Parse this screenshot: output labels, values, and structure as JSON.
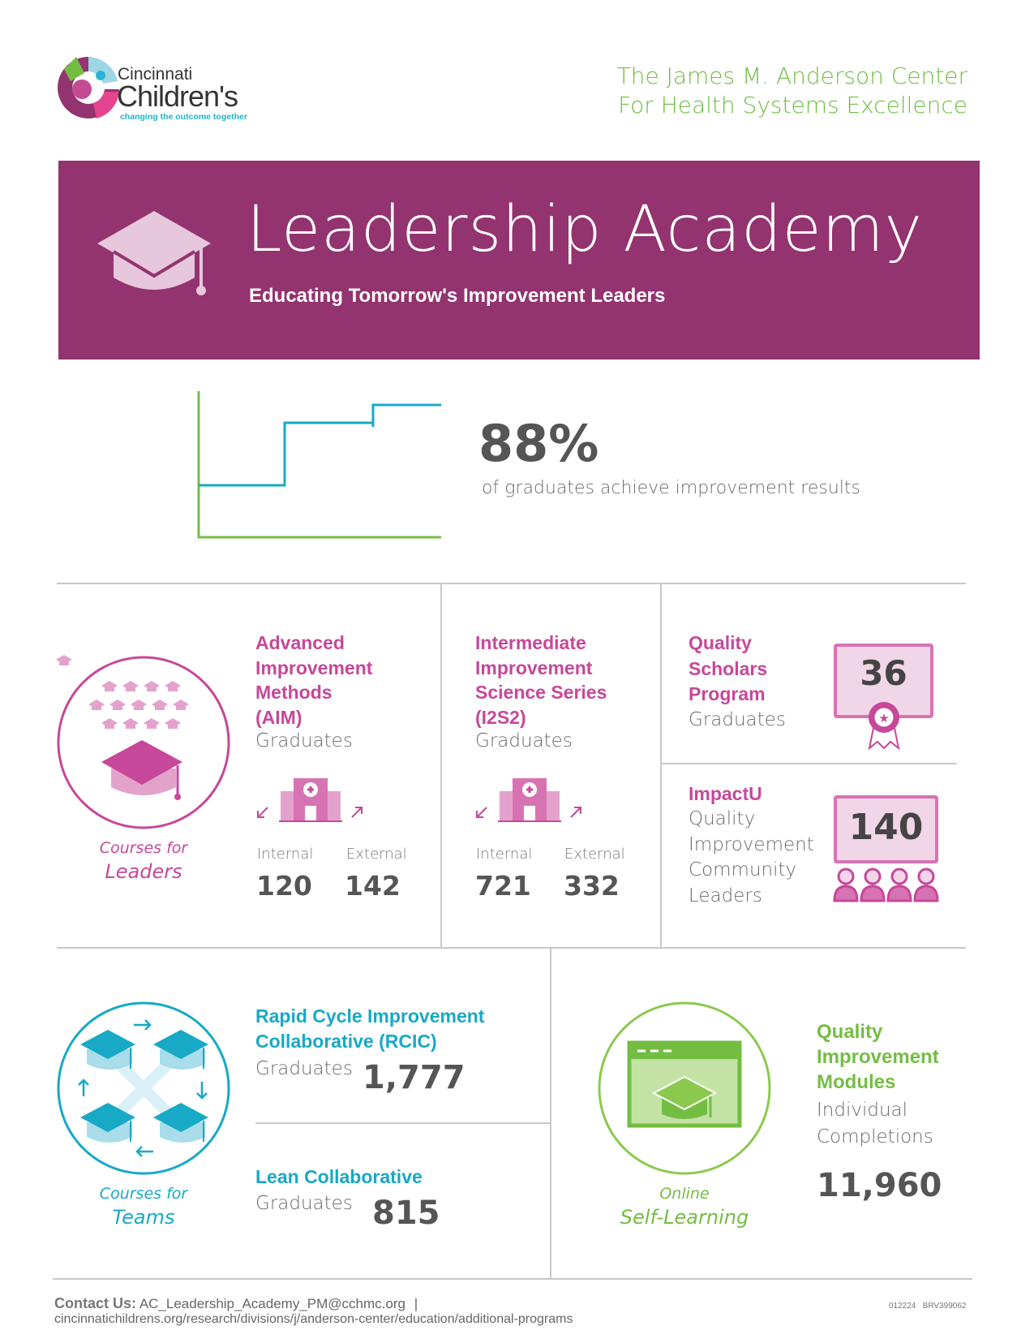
{
  "header": {
    "logo_line1": "Cincinnati",
    "logo_line2": "Children's",
    "logo_tagline": "changing the outcome together",
    "center_line1": "The James M. Anderson Center",
    "center_line2": "For Health Systems Excellence"
  },
  "banner": {
    "title": "Leadership Academy",
    "subtitle": "Educating Tomorrow's Improvement Leaders",
    "color": "#93336f"
  },
  "stat": {
    "value": "88%",
    "caption": "of graduates achieve improvement results"
  },
  "leaders": {
    "label1": "Courses for",
    "label2": "Leaders",
    "aim": {
      "title": [
        "Advanced",
        "Improvement",
        "Methods",
        "(AIM)"
      ],
      "sub": "Graduates",
      "internal_label": "Internal",
      "external_label": "External",
      "internal": "120",
      "external": "142"
    },
    "i2s2": {
      "title": [
        "Intermediate",
        "Improvement",
        "Science Series",
        "(I2S2)"
      ],
      "sub": "Graduates",
      "internal_label": "Internal",
      "external_label": "External",
      "internal": "721",
      "external": "332"
    },
    "qsp": {
      "title": [
        "Quality",
        "Scholars",
        "Program"
      ],
      "sub": "Graduates",
      "value": "36"
    },
    "impactu": {
      "title": "ImpactU",
      "sub": [
        "Quality",
        "Improvement",
        "Community",
        "Leaders"
      ],
      "value": "140"
    }
  },
  "teams": {
    "label1": "Courses for",
    "label2": "Teams",
    "rcic": {
      "title": [
        "Rapid Cycle Improvement",
        "Collaborative (RCIC)"
      ],
      "sub": "Graduates",
      "value": "1,777"
    },
    "lean": {
      "title": "Lean Collaborative",
      "sub": "Graduates",
      "value": "815"
    }
  },
  "online": {
    "label1": "Online",
    "label2": "Self-Learning",
    "title": [
      "Quality",
      "Improvement",
      "Modules"
    ],
    "sub": [
      "Individual",
      "Completions"
    ],
    "value": "11,960"
  },
  "footer": {
    "contact_label": "Contact Us:",
    "email": "AC_Leadership_Academy_PM@cchmc.org",
    "sep": "|",
    "url": "cincinnatichildrens.org/research/divisions/j/anderson-center/education/additional-programs",
    "code1": "012224",
    "code2": "BRV399062"
  }
}
